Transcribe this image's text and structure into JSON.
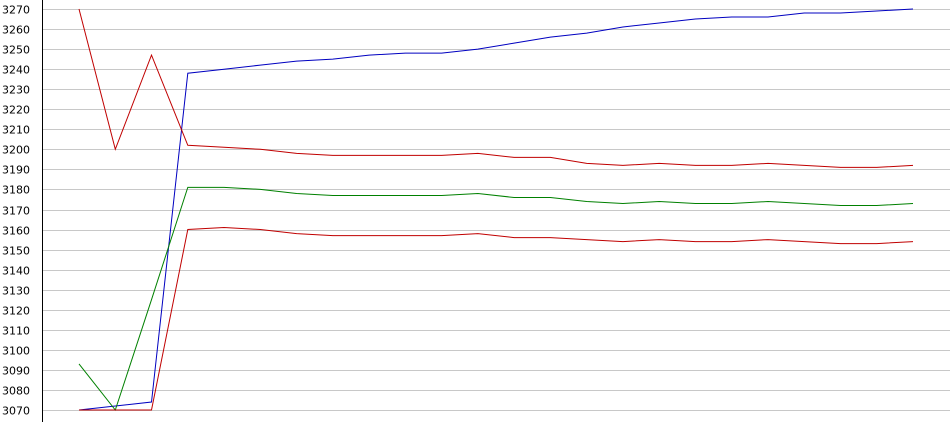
{
  "chart_data": {
    "type": "line",
    "title": "",
    "xlabel": "",
    "ylabel": "",
    "ylim": [
      3070,
      3270
    ],
    "ytick_step": 10,
    "grid": true,
    "legend": "none",
    "x": [
      1,
      2,
      3,
      4,
      5,
      6,
      7,
      8,
      9,
      10,
      11,
      12,
      13,
      14,
      15,
      16,
      17,
      18,
      19,
      20,
      21,
      22,
      23,
      24
    ],
    "series": [
      {
        "color": "#0000c0",
        "values": [
          3070,
          3072,
          3074,
          3238,
          3240,
          3242,
          3244,
          3245,
          3247,
          3248,
          3248,
          3250,
          3253,
          3256,
          3258,
          3261,
          3263,
          3265,
          3266,
          3266,
          3268,
          3268,
          3269,
          3270
        ]
      },
      {
        "color": "#c00000",
        "values": [
          3270,
          3200,
          3247,
          3202,
          3201,
          3200,
          3198,
          3197,
          3197,
          3197,
          3197,
          3198,
          3196,
          3196,
          3193,
          3192,
          3193,
          3192,
          3192,
          3193,
          3192,
          3191,
          3191,
          3192
        ]
      },
      {
        "color": "#008000",
        "values": [
          3093,
          3070,
          3125,
          3181,
          3181,
          3180,
          3178,
          3177,
          3177,
          3177,
          3177,
          3178,
          3176,
          3176,
          3174,
          3173,
          3174,
          3173,
          3173,
          3174,
          3173,
          3172,
          3172,
          3173
        ]
      },
      {
        "color": "#c00000",
        "values": [
          3070,
          3070,
          3070,
          3160,
          3161,
          3160,
          3158,
          3157,
          3157,
          3157,
          3157,
          3158,
          3156,
          3156,
          3155,
          3154,
          3155,
          3154,
          3154,
          3155,
          3154,
          3153,
          3153,
          3154
        ]
      }
    ]
  }
}
